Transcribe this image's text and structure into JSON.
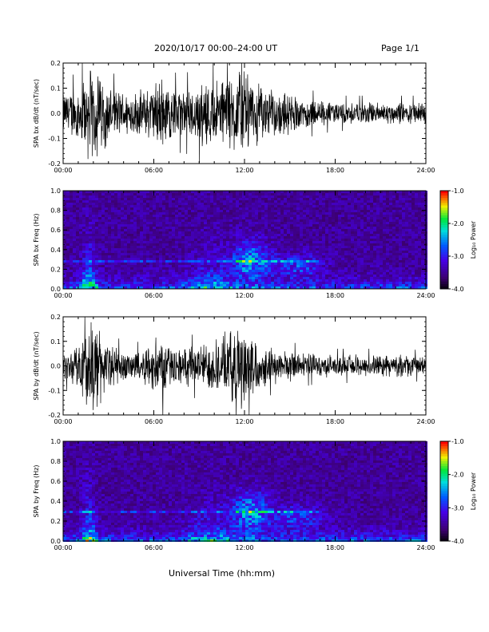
{
  "header": {
    "title": "2020/10/17  00:00–24:00 UT",
    "page": "Page 1/1"
  },
  "footer": {
    "xlabel": "Universal Time (hh:mm)"
  },
  "chart_data": [
    {
      "type": "line",
      "panel": "bx-waveform",
      "ylabel": "SPA bx dB/dt (nT/sec)",
      "xlim": [
        0,
        24
      ],
      "ylim": [
        -0.2,
        0.2
      ],
      "x_tick_labels": [
        "00:00",
        "06:00",
        "12:00",
        "18:00",
        "24:00"
      ],
      "y_tick_labels": [
        "-0.2",
        "-0.1",
        "0.0",
        "0.1",
        "0.2"
      ],
      "envelope": {
        "x_hours": [
          0,
          1,
          1.5,
          2,
          2.5,
          3,
          4,
          5,
          6,
          6.5,
          7,
          8,
          9,
          10,
          11,
          11.5,
          12,
          12.5,
          13,
          14,
          15,
          16,
          17,
          18,
          19,
          20,
          21,
          22,
          23,
          24
        ],
        "amplitude": [
          0.09,
          0.12,
          0.2,
          0.2,
          0.2,
          0.12,
          0.1,
          0.1,
          0.13,
          0.18,
          0.12,
          0.11,
          0.14,
          0.15,
          0.18,
          0.2,
          0.2,
          0.16,
          0.13,
          0.1,
          0.09,
          0.07,
          0.06,
          0.05,
          0.05,
          0.05,
          0.05,
          0.05,
          0.05,
          0.05
        ]
      }
    },
    {
      "type": "heatmap",
      "panel": "bx-spectrogram",
      "ylabel": "SPA bx Freq (Hz)",
      "xlim": [
        0,
        24
      ],
      "ylim": [
        0,
        1.0
      ],
      "x_tick_labels": [
        "00:00",
        "06:00",
        "12:00",
        "18:00",
        "24:00"
      ],
      "y_tick_labels": [
        "0.0",
        "0.2",
        "0.4",
        "0.6",
        "0.8",
        "1.0"
      ],
      "colorbar": {
        "label": "Log₁₀ Power",
        "range": [
          -4.0,
          -1.0
        ],
        "tick_labels": [
          "-1.0",
          "-2.0",
          "-3.0",
          "-4.0"
        ]
      }
    },
    {
      "type": "line",
      "panel": "by-waveform",
      "ylabel": "SPA by dB/dt (nT/sec)",
      "xlim": [
        0,
        24
      ],
      "ylim": [
        -0.2,
        0.2
      ],
      "x_tick_labels": [
        "00:00",
        "06:00",
        "12:00",
        "18:00",
        "24:00"
      ],
      "y_tick_labels": [
        "-0.2",
        "-0.1",
        "0.0",
        "0.1",
        "0.2"
      ],
      "envelope": {
        "x_hours": [
          0,
          1,
          1.5,
          2,
          2.5,
          3,
          4,
          5,
          6,
          6.5,
          7,
          8,
          9,
          10,
          11,
          11.5,
          12,
          12.5,
          13,
          14,
          15,
          16,
          17,
          18,
          19,
          20,
          21,
          22,
          23,
          24
        ],
        "amplitude": [
          0.06,
          0.1,
          0.2,
          0.2,
          0.18,
          0.1,
          0.07,
          0.07,
          0.12,
          0.16,
          0.09,
          0.08,
          0.1,
          0.12,
          0.15,
          0.2,
          0.2,
          0.14,
          0.1,
          0.08,
          0.07,
          0.06,
          0.05,
          0.05,
          0.05,
          0.05,
          0.05,
          0.05,
          0.05,
          0.04
        ]
      }
    },
    {
      "type": "heatmap",
      "panel": "by-spectrogram",
      "ylabel": "SPA by Freq (Hz)",
      "xlim": [
        0,
        24
      ],
      "ylim": [
        0,
        1.0
      ],
      "x_tick_labels": [
        "00:00",
        "06:00",
        "12:00",
        "18:00",
        "24:00"
      ],
      "y_tick_labels": [
        "0.0",
        "0.2",
        "0.4",
        "0.6",
        "0.8",
        "1.0"
      ],
      "colorbar": {
        "label": "Log₁₀ Power",
        "range": [
          -4.0,
          -1.0
        ],
        "tick_labels": [
          "-1.0",
          "-2.0",
          "-3.0",
          "-4.0"
        ]
      }
    }
  ]
}
